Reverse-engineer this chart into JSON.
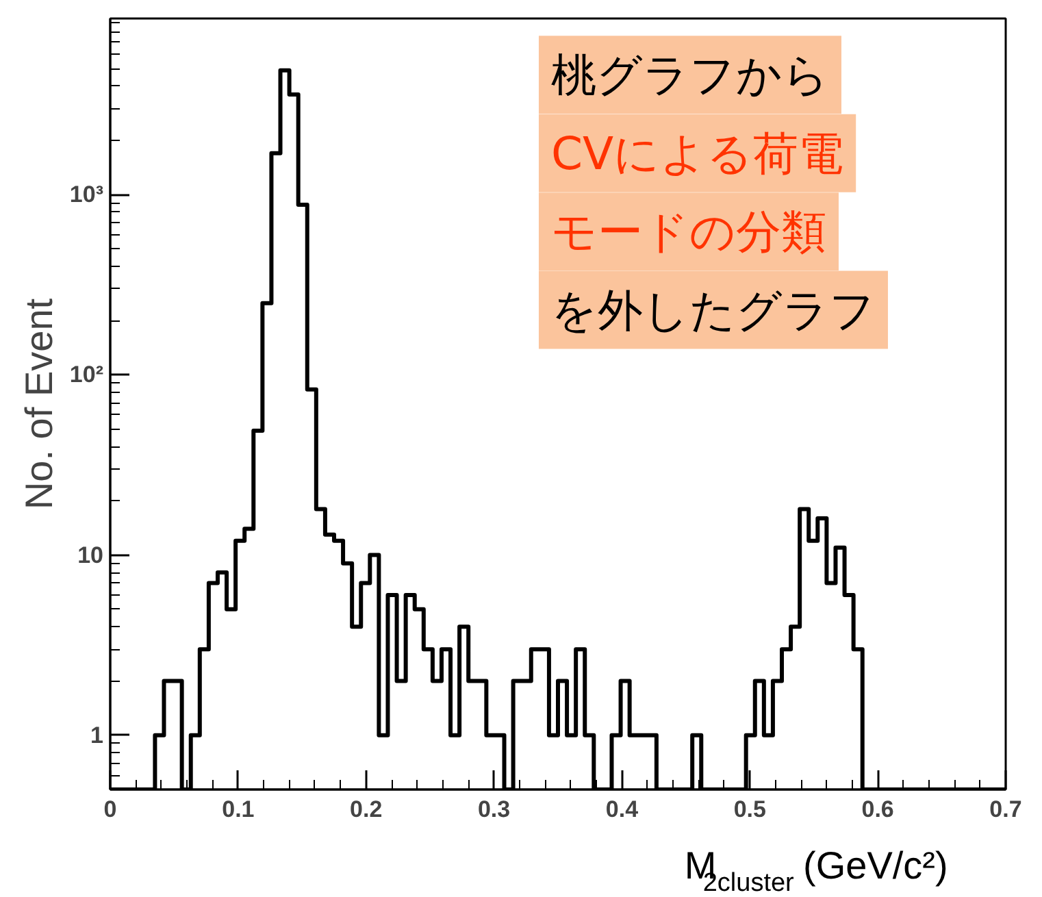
{
  "chart_data": {
    "type": "histogram",
    "bins": [
      0,
      0.007,
      0.014,
      0.021,
      0.028,
      0.035,
      0.042,
      0.049,
      0.056,
      0.063,
      0.07,
      0.077,
      0.084,
      0.091,
      0.098,
      0.105,
      0.112,
      0.119,
      0.126,
      0.133,
      0.14,
      0.147,
      0.154,
      0.161,
      0.168,
      0.175,
      0.182,
      0.189,
      0.196,
      0.203,
      0.21,
      0.217,
      0.224,
      0.231,
      0.238,
      0.245,
      0.252,
      0.259,
      0.266,
      0.273,
      0.28,
      0.287,
      0.294,
      0.301,
      0.308,
      0.315,
      0.322,
      0.329,
      0.336,
      0.343,
      0.35,
      0.357,
      0.364,
      0.371,
      0.378,
      0.385,
      0.392,
      0.399,
      0.406,
      0.413,
      0.42,
      0.427,
      0.434,
      0.441,
      0.448,
      0.455,
      0.462,
      0.469,
      0.476,
      0.483,
      0.49,
      0.497,
      0.504,
      0.511,
      0.518,
      0.525,
      0.532,
      0.539,
      0.546,
      0.553,
      0.56,
      0.567,
      0.574,
      0.581,
      0.588,
      0.595,
      0.602,
      0.609,
      0.616,
      0.623,
      0.63,
      0.637,
      0.644,
      0.651,
      0.658,
      0.665,
      0.672,
      0.679,
      0.686,
      0.693,
      0.7
    ],
    "values": [
      null,
      null,
      null,
      null,
      null,
      1,
      2,
      2,
      null,
      1,
      3,
      7,
      8,
      5,
      12,
      14,
      49,
      250,
      1700,
      4900,
      3600,
      880,
      83,
      18,
      13,
      12,
      9,
      4,
      7,
      10,
      1,
      6,
      2,
      6,
      5,
      3,
      2,
      3,
      1,
      4,
      2,
      2,
      1,
      1,
      null,
      2,
      2,
      3,
      3,
      1,
      2,
      1,
      3,
      1,
      null,
      null,
      1,
      2,
      1,
      1,
      1,
      null,
      null,
      null,
      null,
      1,
      null,
      null,
      null,
      null,
      null,
      1,
      2,
      1,
      2,
      3,
      4,
      18,
      12,
      16,
      7,
      11,
      6,
      3,
      null,
      null,
      null,
      null,
      null,
      null,
      null,
      null,
      null,
      null,
      null,
      null,
      null,
      null,
      null,
      null
    ],
    "color": "#000000",
    "log": "y",
    "xlim": [
      0,
      0.7
    ],
    "ylim": [
      0.5,
      9500
    ],
    "xticks": [
      0,
      0.1,
      0.2,
      0.3,
      0.4,
      0.5,
      0.6,
      0.7
    ],
    "yticks": [
      1,
      10,
      {
        "value": 100,
        "label": "10²"
      },
      {
        "value": 1000,
        "label": "10³"
      }
    ],
    "xlabel": "M$_{2cluster}$(GeV/c²)",
    "ylabel": "No. of Event",
    "annotations": [
      "桃グラフから",
      "CVによる荷電",
      "モードの分類",
      "を外したグラフ"
    ]
  }
}
